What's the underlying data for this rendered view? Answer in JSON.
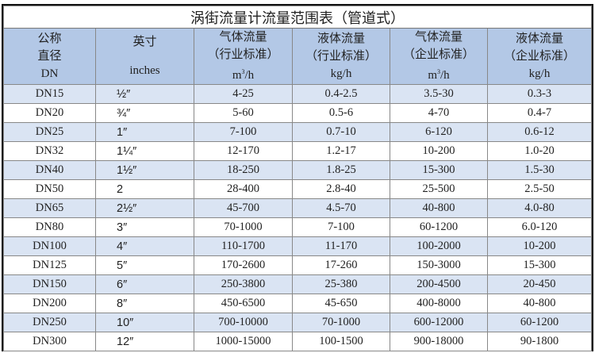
{
  "title": "涡街流量计流量范围表（管道式）",
  "colors": {
    "header_bg": "#b3c8e6",
    "stripe_bg": "#dae4f3",
    "border": "#111111"
  },
  "headers": [
    {
      "lines": [
        "公称",
        "直径",
        "DN"
      ]
    },
    {
      "lines": [
        "英寸",
        "inches"
      ]
    },
    {
      "lines": [
        "气体流量",
        "（行业标准）"
      ],
      "unit_base": "m",
      "unit_sup": "3",
      "unit_tail": "/h"
    },
    {
      "lines": [
        "液体流量",
        "（行业标准）",
        "kg/h"
      ]
    },
    {
      "lines": [
        "气体流量",
        "（企业标准）"
      ],
      "unit_base": "m",
      "unit_sup": "3",
      "unit_tail": "/h"
    },
    {
      "lines": [
        "液体流量",
        "（企业标准）",
        "kg/h"
      ]
    }
  ],
  "rows": [
    [
      "DN15",
      "½″",
      "4-25",
      "0.4-2.5",
      "3.5-30",
      "0.3-3"
    ],
    [
      "DN20",
      "¾″",
      "5-60",
      "0.5-6",
      "4-70",
      "0.4-7"
    ],
    [
      "DN25",
      "1″",
      "7-100",
      "0.7-10",
      "6-120",
      "0.6-12"
    ],
    [
      "DN32",
      "1¼″",
      "12-170",
      "1.2-17",
      "10-200",
      "1.0-20"
    ],
    [
      "DN40",
      "1½″",
      "18-250",
      "1.8-25",
      "15-300",
      "1.5-30"
    ],
    [
      "DN50",
      "2",
      "28-400",
      "2.8-40",
      "25-500",
      "2.5-50"
    ],
    [
      "DN65",
      "2½″",
      "45-700",
      "4.5-70",
      "40-800",
      "4.0-80"
    ],
    [
      "DN80",
      "3″",
      "70-1000",
      "7-100",
      "60-1200",
      "6.0-120"
    ],
    [
      "DN100",
      "4″",
      "110-1700",
      "11-170",
      "100-2000",
      "10-200"
    ],
    [
      "DN125",
      "5″",
      "170-2600",
      "17-260",
      "150-3000",
      "15-300"
    ],
    [
      "DN150",
      "6″",
      "250-3800",
      "25-380",
      "200-4500",
      "20-450"
    ],
    [
      "DN200",
      "8″",
      "450-6500",
      "45-650",
      "400-8000",
      "40-800"
    ],
    [
      "DN250",
      "10″",
      "700-10000",
      "70-1000",
      "600-12000",
      "60-1200"
    ],
    [
      "DN300",
      "12″",
      "1000-15000",
      "100-1500",
      "900-18000",
      "90-1800"
    ]
  ]
}
